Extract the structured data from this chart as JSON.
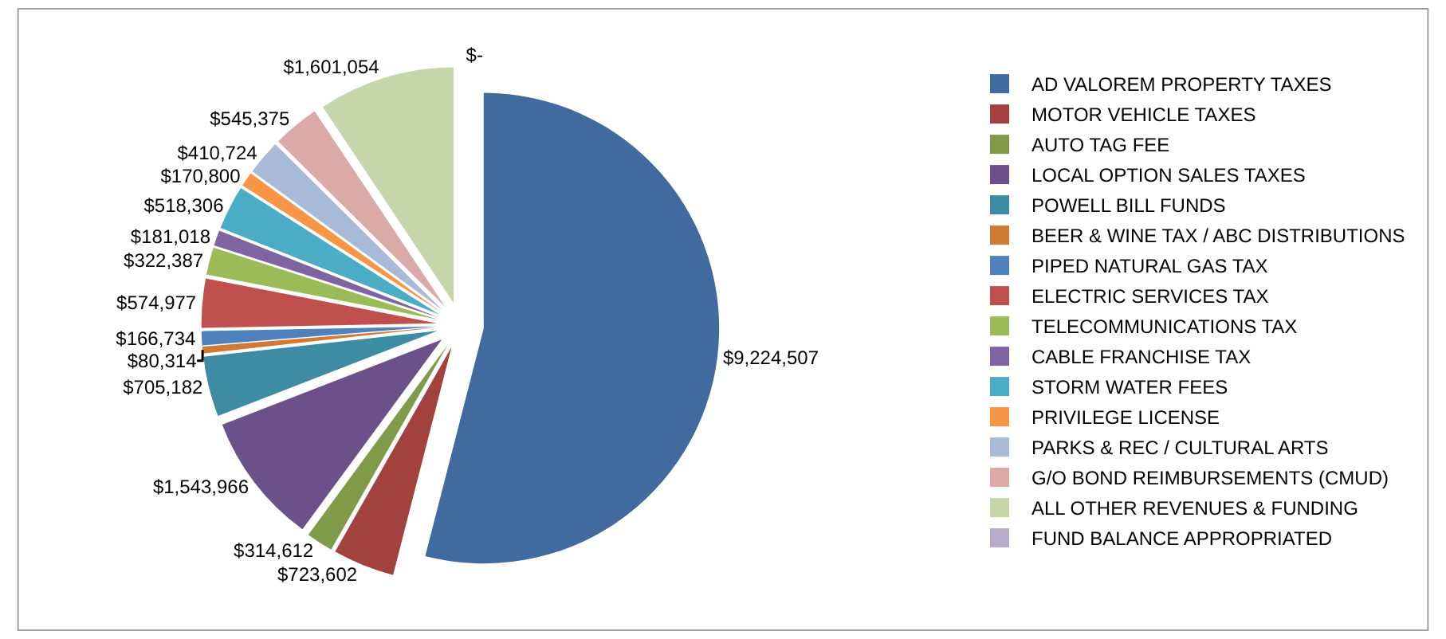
{
  "chart_data": {
    "type": "pie",
    "categories": [
      "AD VALOREM PROPERTY TAXES",
      "MOTOR VEHICLE TAXES",
      "AUTO TAG FEE",
      "LOCAL OPTION SALES TAXES",
      "POWELL BILL FUNDS",
      "BEER & WINE TAX / ABC DISTRIBUTIONS",
      "PIPED NATURAL GAS TAX",
      "ELECTRIC SERVICES TAX",
      "TELECOMMUNICATIONS TAX",
      "CABLE FRANCHISE TAX",
      "STORM WATER FEES",
      "PRIVILEGE LICENSE",
      "PARKS & REC / CULTURAL ARTS",
      "G/O BOND REIMBURSEMENTS (CMUD)",
      "ALL OTHER REVENUES & FUNDING",
      "FUND BALANCE APPROPRIATED"
    ],
    "values": [
      9224507,
      723602,
      314612,
      1543966,
      705182,
      80314,
      166734,
      574977,
      322387,
      181018,
      518306,
      170800,
      410724,
      545375,
      1601054,
      0
    ],
    "value_labels": [
      "$9,224,507",
      "$723,602",
      "$314,612",
      "$1,543,966",
      "$705,182",
      "$80,314",
      "$166,734",
      "$574,977",
      "$322,387",
      "$181,018",
      "$518,306",
      "$170,800",
      "$410,724",
      "$545,375",
      "$1,601,054",
      "$-"
    ],
    "colors": [
      "#416a9f",
      "#a3413f",
      "#7f9a48",
      "#6b5089",
      "#3d8ca3",
      "#d07b35",
      "#4f81bd",
      "#c0504d",
      "#9bbb59",
      "#8064a2",
      "#4bacc6",
      "#f79646",
      "#a9b9d8",
      "#dba9a8",
      "#c5d6aa",
      "#b7abc9"
    ],
    "legend": "right"
  }
}
